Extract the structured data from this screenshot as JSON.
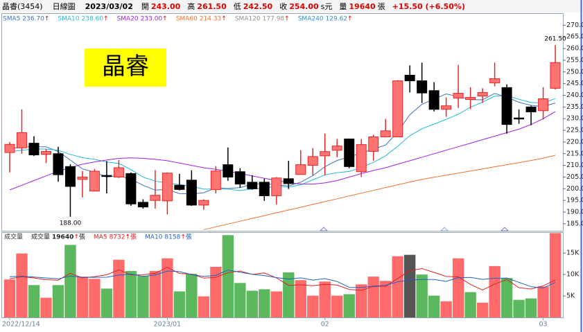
{
  "header": {
    "name": "晶睿(3454)",
    "period": "日線圖",
    "date": "2023/03/02",
    "fields": [
      {
        "label": "開",
        "value": "243.00"
      },
      {
        "label": "高",
        "value": "261.50"
      },
      {
        "label": "低",
        "value": "242.50"
      },
      {
        "label": "收",
        "value": "254.00",
        "unit": "s元"
      },
      {
        "label": "量",
        "value": "19640",
        "unit": "張"
      }
    ],
    "change": "+15.50 (+6.50%)"
  },
  "chart_data": [
    {
      "type": "candlestick",
      "stock_label": "晶睿",
      "arrow": "↑",
      "categories": [
        "2022/12/14",
        null,
        null,
        null,
        null,
        null,
        null,
        null,
        null,
        null,
        null,
        null,
        null,
        "2023/01",
        null,
        null,
        null,
        null,
        null,
        null,
        null,
        null,
        null,
        null,
        null,
        null,
        "02",
        null,
        null,
        null,
        null,
        null,
        null,
        null,
        null,
        null,
        null,
        null,
        null,
        null,
        null,
        null,
        null,
        null,
        "03",
        null
      ],
      "open": [
        215.5,
        217.5,
        219.5,
        214.7,
        215,
        209.5,
        204,
        199,
        205.7,
        205,
        206.5,
        194.2,
        195,
        194.8,
        201.5,
        203.7,
        193,
        199.6,
        210.3,
        207.3,
        202.8,
        202.8,
        197,
        204.3,
        206.1,
        210,
        214.1,
        216.5,
        221.3,
        207.3,
        216,
        222.2,
        222.2,
        248.6,
        246.2,
        242,
        234,
        238.8,
        238.2,
        239.7,
        245.3,
        243.3,
        230.3,
        235,
        233.4,
        243
      ],
      "high": [
        220,
        234,
        222.5,
        217,
        218,
        210.5,
        207.6,
        208.5,
        211.8,
        212.3,
        207,
        195.5,
        208,
        207,
        206.4,
        207.9,
        195.5,
        209.7,
        217.7,
        208.8,
        205.8,
        204.3,
        205,
        212,
        216.5,
        217.4,
        223.6,
        221.3,
        221.5,
        221.3,
        223.1,
        229.9,
        246.5,
        252.8,
        254,
        245.6,
        239.1,
        253,
        243.5,
        243,
        254,
        244.7,
        234,
        235.5,
        243.5,
        261.5
      ],
      "low": [
        207,
        215,
        214,
        211,
        203,
        188,
        196.3,
        199,
        198,
        204.6,
        192.7,
        191.5,
        191.5,
        189,
        199.3,
        192.7,
        191,
        198,
        203.4,
        200.5,
        199.6,
        194.8,
        193.3,
        199.9,
        206,
        205.8,
        205.8,
        213.5,
        208.8,
        205,
        212,
        222,
        222,
        241.2,
        236.7,
        233.1,
        230.8,
        234.6,
        234,
        236.7,
        243.8,
        223.6,
        227.8,
        227.2,
        229.6,
        242.5
      ],
      "close": [
        219,
        224,
        214.5,
        216,
        206,
        201,
        205,
        207.5,
        205.3,
        209,
        193.5,
        192.2,
        197.2,
        206.7,
        199.7,
        193,
        195,
        207.6,
        205,
        202,
        200,
        197,
        204.6,
        202.2,
        210.3,
        213.8,
        215.9,
        218.3,
        209.5,
        218.9,
        222.2,
        224.8,
        246.2,
        246.2,
        241,
        234,
        235.5,
        240.9,
        239.1,
        241.2,
        247.1,
        227.5,
        230,
        232.9,
        238.5,
        254
      ],
      "up_color": "#ff7373",
      "up_edge": "#e82828",
      "down_color": "#000000",
      "series": [
        {
          "name": "SMA5",
          "label": "236.70",
          "color": "#3f72b8",
          "values": [
            217,
            218,
            218,
            218,
            215.9,
            212.3,
            208.5,
            207.1,
            205,
            205.6,
            204.1,
            201.5,
            199.4,
            199.7,
            197.9,
            197.8,
            198.3,
            200.4,
            200.1,
            200.5,
            201.9,
            202.3,
            201.7,
            201.2,
            202.8,
            205.6,
            209.4,
            212.1,
            213.6,
            215.3,
            217,
            218.7,
            224.3,
            231.7,
            236.1,
            238.4,
            240.6,
            239.5,
            238.1,
            238.1,
            240.8,
            239.2,
            237,
            235.7,
            235.2,
            236.7
          ]
        },
        {
          "name": "SMA10",
          "label": "238.60",
          "color": "#22b8d8",
          "values": [
            216,
            216.5,
            217,
            217,
            216.5,
            214.7,
            213.3,
            212.6,
            211.5,
            210.8,
            208.2,
            205,
            203.3,
            202.4,
            201.8,
            201,
            199.9,
            199.9,
            199.9,
            199.2,
            199.9,
            200.3,
            201.1,
            200.7,
            201.7,
            203.8,
            205.9,
            206.9,
            207.4,
            209.1,
            211.3,
            214.1,
            218.2,
            222.7,
            225.7,
            227.7,
            229.7,
            231.9,
            234.9,
            237.1,
            239.6,
            239.9,
            238.3,
            236.9,
            236.7,
            238.6
          ]
        },
        {
          "name": "SMA20",
          "label": "233.00",
          "color": "#a020e0",
          "values": [
            199.5,
            201.5,
            203.5,
            205.5,
            207.5,
            209,
            210.5,
            211.5,
            212.3,
            213,
            213.2,
            213,
            212.6,
            212,
            211,
            210,
            209,
            208.3,
            207.5,
            206.5,
            205.5,
            204.5,
            203.5,
            202.7,
            202,
            202,
            202.5,
            203.5,
            205,
            206.5,
            207.8,
            209,
            210.5,
            212,
            213.5,
            215,
            216.5,
            218,
            219.5,
            221,
            222.5,
            224,
            225.5,
            227.5,
            230,
            233
          ]
        },
        {
          "name": "SMA60",
          "label": "214.33",
          "color": "#f07030",
          "values": [
            null,
            null,
            null,
            null,
            null,
            null,
            null,
            null,
            null,
            null,
            null,
            null,
            null,
            null,
            null,
            null,
            182.5,
            183.7,
            184.9,
            186.1,
            187.3,
            188.5,
            189.7,
            190.9,
            192.1,
            193.3,
            194.5,
            195.7,
            196.9,
            198.1,
            199.3,
            200.5,
            201.7,
            202.9,
            204,
            204.9,
            205.8,
            206.7,
            207.6,
            208.5,
            209.4,
            210.3,
            211.2,
            212.1,
            213.1,
            214.33
          ]
        },
        {
          "name": "SMA120",
          "label": "177.98",
          "color": "#909090"
        },
        {
          "name": "SMA240",
          "label": "129.62",
          "color": "#3090c8"
        }
      ],
      "annotations": [
        {
          "text": "261.50",
          "at": "high",
          "index": 45
        },
        {
          "text": "188.00",
          "at": "low",
          "index": 5
        }
      ],
      "ylim": [
        182,
        271
      ],
      "yticks": [
        {
          "value": 185,
          "label": "185.0"
        },
        {
          "value": 190,
          "label": "190.0"
        },
        {
          "value": 195,
          "label": "195.0"
        },
        {
          "value": 200,
          "label": "200.0"
        },
        {
          "value": 205,
          "label": "205.0"
        },
        {
          "value": 210,
          "label": "210.0"
        },
        {
          "value": 215,
          "label": "215.0"
        },
        {
          "value": 220,
          "label": "220.0"
        },
        {
          "value": 225,
          "label": "225.0"
        },
        {
          "value": 230,
          "label": "230.0"
        },
        {
          "value": 235,
          "label": "235.0"
        },
        {
          "value": 240,
          "label": "240.0"
        },
        {
          "value": 245,
          "label": "245.0"
        },
        {
          "value": 250,
          "label": "250.0"
        },
        {
          "value": 255,
          "label": "255.0"
        },
        {
          "value": 260,
          "label": "260.0"
        },
        {
          "value": 265,
          "label": "265.0"
        },
        {
          "value": 270,
          "label": "270.0"
        }
      ]
    },
    {
      "type": "bar",
      "title": "成交量",
      "arrow": "↑",
      "series": [
        {
          "name": "成交量",
          "label": "19640",
          "unit": "張",
          "color": "#222222",
          "values": [
            8850,
            14900,
            7540,
            4590,
            7540,
            16900,
            9500,
            9000,
            6720,
            13440,
            10820,
            9670,
            10820,
            13770,
            6070,
            10160,
            4920,
            11800,
            19180,
            8030,
            6230,
            6560,
            6070,
            10490,
            8690,
            5080,
            8360,
            5080,
            5410,
            7700,
            9510,
            8520,
            14260,
            14590,
            10000,
            5080,
            3770,
            13770,
            5900,
            3440,
            11970,
            9180,
            4100,
            4430,
            7210,
            19640
          ],
          "colors": [
            "#ff6b6b",
            "#ff6b6b",
            "#5cb85c",
            "#ff6b6b",
            "#5cb85c",
            "#5cb85c",
            "#ff6b6b",
            "#ff6b6b",
            "#5cb85c",
            "#ff6b6b",
            "#5cb85c",
            "#5cb85c",
            "#ff6b6b",
            "#ff6b6b",
            "#5cb85c",
            "#5cb85c",
            "#ff6b6b",
            "#ff6b6b",
            "#5cb85c",
            "#5cb85c",
            "#5cb85c",
            "#5cb85c",
            "#ff6b6b",
            "#5cb85c",
            "#ff6b6b",
            "#ff6b6b",
            "#ff6b6b",
            "#ff6b6b",
            "#5cb85c",
            "#ff6b6b",
            "#ff6b6b",
            "#ff6b6b",
            "#ff6b6b",
            "#555555",
            "#5cb85c",
            "#5cb85c",
            "#ff6b6b",
            "#ff6b6b",
            "#5cb85c",
            "#ff6b6b",
            "#ff6b6b",
            "#5cb85c",
            "#5cb85c",
            "#5cb85c",
            "#ff6b6b",
            "#ff6b6b"
          ]
        },
        {
          "name": "MA5",
          "label": "8732",
          "unit": "張",
          "color": "#e02020",
          "type": "line",
          "values": [
            9000,
            9500,
            9200,
            8800,
            8684,
            10294,
            9214,
            9506,
            9932,
            11112,
            9896,
            9930,
            10294,
            11704,
            10230,
            10098,
            9148,
            9344,
            10426,
            10818,
            10032,
            10360,
            9214,
            7476,
            7608,
            7378,
            7738,
            7540,
            6524,
            6326,
            7212,
            7244,
            9080,
            10916,
            11376,
            10490,
            9540,
            9442,
            7704,
            6392,
            7770,
            8852,
            6918,
            6624,
            7378,
            8732
          ]
        },
        {
          "name": "MA10",
          "label": "8158",
          "unit": "張",
          "color": "#2060c0",
          "type": "line",
          "values": [
            9500,
            9600,
            9400,
            9200,
            9000,
            9647,
            9357,
            9353,
            9366,
            9898,
            10095,
            9572,
            9900,
            10818,
            10671,
            9997,
            9539,
            9819,
            11065,
            10524,
            10065,
            9754,
            9279,
            8951,
            9213,
            8705,
            9049,
            8377,
            7000,
            6967,
            7295,
            7491,
            8310,
            8720,
            8851,
            8851,
            8392,
            9261,
            9310,
            8884,
            9130,
            9196,
            8181,
            7164,
            6885,
            8158
          ]
        }
      ],
      "ylim": [
        0,
        19700
      ],
      "yticks": [
        {
          "value": 5000,
          "label": "5K"
        },
        {
          "value": 10000,
          "label": "10K"
        },
        {
          "value": 15000,
          "label": "15K"
        }
      ]
    }
  ]
}
